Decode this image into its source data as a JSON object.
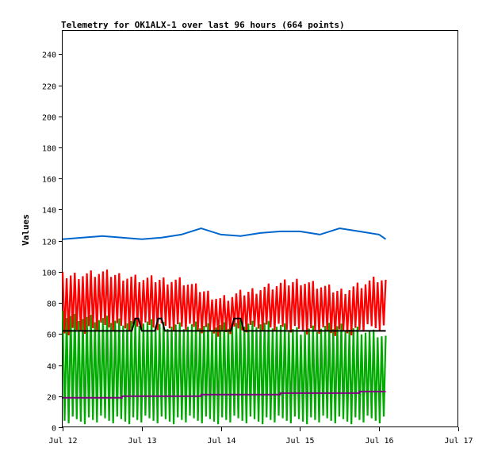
{
  "chart_data": {
    "type": "line",
    "title": "Telemetry for OK1ALX-1 over last 96 hours (664 points)",
    "ylabel": "Values",
    "xlabel": "",
    "ylim": [
      0,
      255
    ],
    "xlim": [
      "2023-07-12",
      "2023-07-17"
    ],
    "y_ticks": [
      0,
      20,
      40,
      60,
      80,
      100,
      120,
      140,
      160,
      180,
      200,
      220,
      240
    ],
    "x_ticks": [
      {
        "date": "2023-07-12",
        "label": "Jul 12"
      },
      {
        "date": "2023-07-13",
        "label": "Jul 13"
      },
      {
        "date": "2023-07-14",
        "label": "Jul 14"
      },
      {
        "date": "2023-07-15",
        "label": "Jul 15"
      },
      {
        "date": "2023-07-16",
        "label": "Jul 16"
      },
      {
        "date": "2023-07-17",
        "label": "Jul 17"
      }
    ],
    "grid": false,
    "legend": "none",
    "series": [
      {
        "color": "#0066cc",
        "style": "line",
        "x": [
          "2023-07-12T00:00",
          "2023-07-12T06:00",
          "2023-07-12T12:00",
          "2023-07-12T18:00",
          "2023-07-13T00:00",
          "2023-07-13T06:00",
          "2023-07-13T12:00",
          "2023-07-13T18:00",
          "2023-07-14T00:00",
          "2023-07-14T06:00",
          "2023-07-14T12:00",
          "2023-07-14T18:00",
          "2023-07-15T00:00",
          "2023-07-15T06:00",
          "2023-07-15T12:00",
          "2023-07-15T18:00",
          "2023-07-16T00:00",
          "2023-07-16T02:00"
        ],
        "y": [
          121,
          122,
          123,
          122,
          121,
          122,
          124,
          128,
          124,
          123,
          125,
          126,
          126,
          124,
          128,
          126,
          124,
          121
        ]
      },
      {
        "color": "#ff0000",
        "style": "oscillating",
        "x": [
          "2023-07-12T00:00",
          "2023-07-12T12:00",
          "2023-07-13T00:00",
          "2023-07-13T12:00",
          "2023-07-14T00:00",
          "2023-07-14T12:00",
          "2023-07-15T00:00",
          "2023-07-15T12:00",
          "2023-07-16T00:00",
          "2023-07-16T02:00"
        ],
        "high": [
          100,
          102,
          98,
          97,
          85,
          92,
          97,
          90,
          98,
          96
        ],
        "low": [
          58,
          62,
          62,
          62,
          58,
          62,
          60,
          58,
          62,
          60
        ]
      },
      {
        "color": "#00aa00",
        "style": "oscillating",
        "x": [
          "2023-07-12T00:00",
          "2023-07-12T12:00",
          "2023-07-13T00:00",
          "2023-07-13T12:00",
          "2023-07-14T00:00",
          "2023-07-14T12:00",
          "2023-07-15T00:00",
          "2023-07-15T12:00",
          "2023-07-16T00:00",
          "2023-07-16T02:00"
        ],
        "high": [
          75,
          72,
          70,
          68,
          68,
          70,
          65,
          68,
          62,
          60
        ],
        "low": [
          2,
          2,
          2,
          2,
          2,
          2,
          2,
          2,
          2,
          2
        ]
      },
      {
        "color": "#000000",
        "style": "line",
        "x": [
          "2023-07-12T00:00",
          "2023-07-12T21:00",
          "2023-07-12T22:00",
          "2023-07-12T23:00",
          "2023-07-13T00:00",
          "2023-07-13T04:00",
          "2023-07-13T05:00",
          "2023-07-13T06:00",
          "2023-07-13T07:00",
          "2023-07-14T03:00",
          "2023-07-14T04:00",
          "2023-07-14T06:00",
          "2023-07-14T07:00",
          "2023-07-16T02:00"
        ],
        "y": [
          62,
          62,
          70,
          70,
          62,
          62,
          70,
          70,
          62,
          62,
          70,
          70,
          62,
          62
        ]
      },
      {
        "color": "#800080",
        "style": "step",
        "x": [
          "2023-07-12T00:00",
          "2023-07-12T18:00",
          "2023-07-13T18:00",
          "2023-07-14T18:00",
          "2023-07-15T18:00",
          "2023-07-16T02:00"
        ],
        "y": [
          19,
          20,
          21,
          22,
          23,
          23
        ]
      }
    ]
  }
}
